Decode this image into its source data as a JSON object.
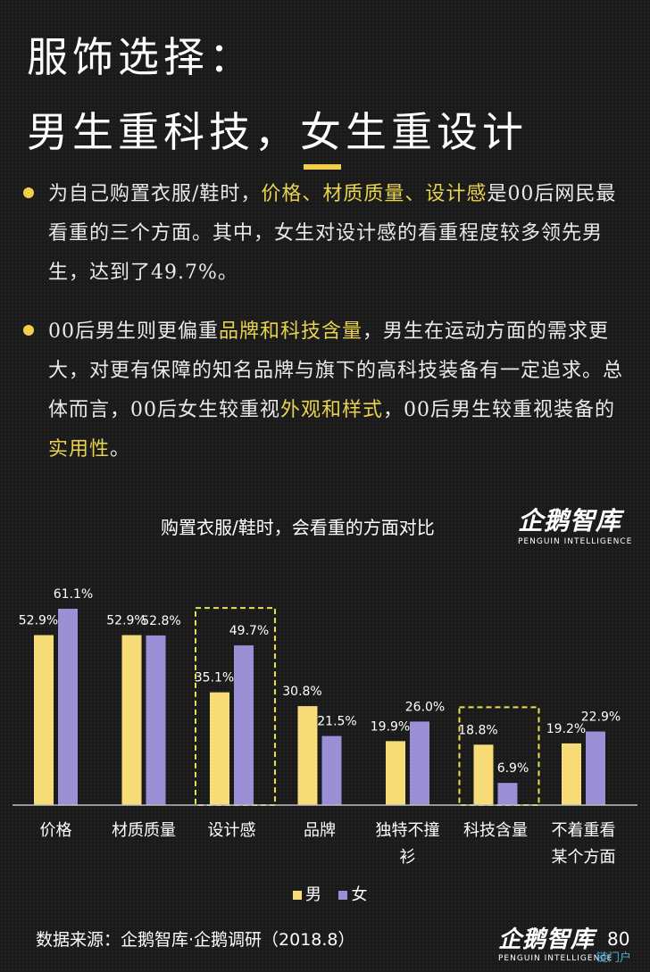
{
  "header": {
    "title_line1": "服饰选择：",
    "title_line2": "男生重科技，女生重设计"
  },
  "paragraphs": [
    {
      "segments": [
        {
          "text": "为自己购置衣服/鞋时，",
          "hl": false
        },
        {
          "text": "价格、材质质量、设计感",
          "hl": true
        },
        {
          "text": "是00后网民最看重的三个方面。其中，女生对设计感的看重程度较多领先男生，达到了49.7%。",
          "hl": false
        }
      ]
    },
    {
      "segments": [
        {
          "text": "00后男生则更偏重",
          "hl": false
        },
        {
          "text": "品牌和科技含量",
          "hl": true
        },
        {
          "text": "，男生在运动方面的需求更大，对更有保障的知名品牌与旗下的高科技装备有一定追求。总体而言，00后女生较重视",
          "hl": false
        },
        {
          "text": "外观和样式",
          "hl": true
        },
        {
          "text": "，00后男生较重视装备的",
          "hl": false
        },
        {
          "text": "实用性",
          "hl": true
        },
        {
          "text": "。",
          "hl": false
        }
      ]
    }
  ],
  "logo": {
    "cn": "企鹅智库",
    "en": "PENGUIN INTELLIGENCE"
  },
  "chart_data": {
    "type": "bar",
    "title": "购置衣服/鞋时，会看重的方面对比",
    "categories": [
      [
        "价格"
      ],
      [
        "材质质量"
      ],
      [
        "设计感"
      ],
      [
        "品牌"
      ],
      [
        "独特不撞",
        "衫"
      ],
      [
        "科技含量"
      ],
      [
        "不着重看",
        "某个方面"
      ]
    ],
    "series": [
      {
        "name": "男",
        "color": "#f8dc78",
        "values": [
          52.9,
          52.9,
          35.1,
          30.8,
          19.9,
          18.8,
          19.2
        ],
        "labels": [
          "52.9%",
          "52.9%",
          "35.1%",
          "30.8%",
          "19.9%",
          "18.8%",
          "19.2%"
        ]
      },
      {
        "name": "女",
        "color": "#9b8fd6",
        "values": [
          61.1,
          52.8,
          49.7,
          21.5,
          26.0,
          6.9,
          22.9
        ],
        "labels": [
          "61.1%",
          "52.8%",
          "49.7%",
          "21.5%",
          "26.0%",
          "6.9%",
          "22.9%"
        ]
      }
    ],
    "ylim": [
      0,
      70
    ],
    "highlighted_categories": [
      2,
      5
    ],
    "highlight_color": "#e8e24a",
    "grid": false,
    "legend_position": "bottom"
  },
  "footer": {
    "source": "数据来源：企鹅智库·企鹅调研（2018.8）",
    "page_number": "80",
    "watermark": "链门户"
  }
}
